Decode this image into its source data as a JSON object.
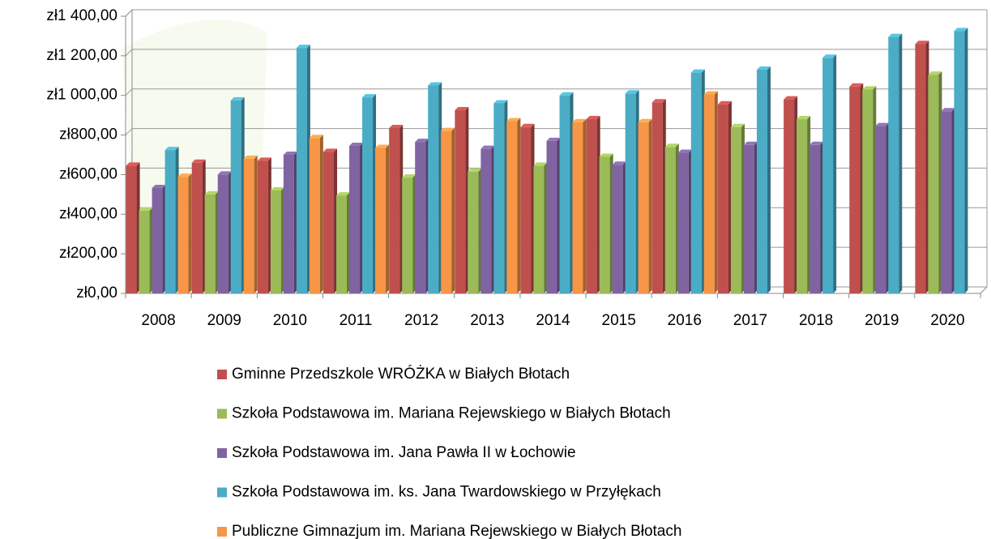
{
  "chart_data": {
    "type": "bar3d",
    "categories": [
      "2008",
      "2009",
      "2010",
      "2011",
      "2012",
      "2013",
      "2014",
      "2015",
      "2016",
      "2017",
      "2018",
      "2019",
      "2020"
    ],
    "series": [
      {
        "name": "Gminne Przedszkole WRÓŻKA w Białych Błotach",
        "color": "#c0504d",
        "values": [
          645,
          660,
          670,
          715,
          835,
          925,
          840,
          880,
          965,
          955,
          980,
          1045,
          1260
        ]
      },
      {
        "name": "Szkoła Podstawowa im. Mariana Rejewskiego w Białych Błotach",
        "color": "#9bbb59",
        "values": [
          418,
          500,
          520,
          495,
          585,
          615,
          645,
          690,
          740,
          840,
          880,
          1030,
          1105
        ]
      },
      {
        "name": "Szkoła Podstawowa im. Jana Pawła II w Łochowie",
        "color": "#8064a2",
        "values": [
          532,
          600,
          700,
          745,
          765,
          730,
          770,
          650,
          710,
          750,
          750,
          845,
          920
        ]
      },
      {
        "name": "Szkoła Podstawowa im. ks. Jana Twardowskiego w Przyłękach",
        "color": "#4bacc6",
        "values": [
          724,
          975,
          1240,
          990,
          1050,
          960,
          1000,
          1010,
          1115,
          1130,
          1190,
          1295,
          1325
        ]
      },
      {
        "name": "Publiczne Gimnazjum im. Mariana Rejewskiego w Białych Błotach",
        "color": "#f79646",
        "values": [
          589,
          680,
          785,
          735,
          820,
          870,
          865,
          865,
          1005,
          null,
          null,
          null,
          null
        ]
      }
    ],
    "ylim": [
      0,
      1400
    ],
    "yticks": [
      {
        "value": 0,
        "label": "zł0,00"
      },
      {
        "value": 200,
        "label": "zł200,00"
      },
      {
        "value": 400,
        "label": "zł400,00"
      },
      {
        "value": 600,
        "label": "zł600,00"
      },
      {
        "value": 800,
        "label": "zł800,00"
      },
      {
        "value": 1000,
        "label": "zł1 000,00"
      },
      {
        "value": 1200,
        "label": "zł1 200,00"
      },
      {
        "value": 1400,
        "label": "zł1 400,00"
      }
    ],
    "grid": true
  }
}
